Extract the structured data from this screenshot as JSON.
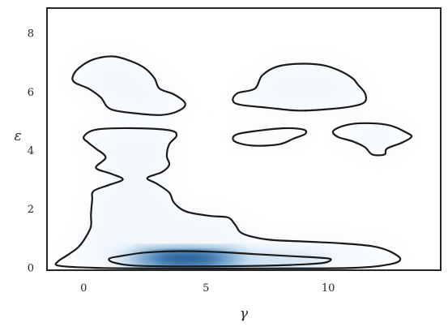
{
  "chart_data": {
    "type": "density",
    "title": "",
    "xlabel": "γ",
    "ylabel": "ε",
    "xlim": [
      -1.5,
      14.6
    ],
    "ylim": [
      -0.1,
      8.85
    ],
    "xticks": [
      0,
      5,
      10
    ],
    "yticks": [
      0,
      2,
      4,
      6,
      8
    ],
    "grid": false,
    "colormap": "Blues",
    "density_peak": {
      "x": 4.2,
      "y": 0.3
    },
    "contours": [
      {
        "name": "outer-main",
        "points": [
          [
            0.0,
            4.45
          ],
          [
            0.5,
            4.7
          ],
          [
            2.0,
            4.75
          ],
          [
            3.5,
            4.68
          ],
          [
            3.8,
            4.5
          ],
          [
            3.5,
            4.2
          ],
          [
            3.4,
            3.8
          ],
          [
            3.5,
            3.5
          ],
          [
            3.2,
            3.25
          ],
          [
            2.6,
            3.05
          ],
          [
            3.0,
            2.85
          ],
          [
            3.5,
            2.55
          ],
          [
            3.7,
            2.2
          ],
          [
            4.2,
            1.9
          ],
          [
            5.2,
            1.75
          ],
          [
            5.9,
            1.7
          ],
          [
            6.2,
            1.45
          ],
          [
            6.5,
            1.15
          ],
          [
            7.5,
            0.95
          ],
          [
            9.0,
            0.88
          ],
          [
            10.5,
            0.82
          ],
          [
            11.8,
            0.72
          ],
          [
            12.5,
            0.55
          ],
          [
            12.95,
            0.28
          ],
          [
            12.5,
            0.1
          ],
          [
            11.0,
            -0.02
          ],
          [
            7.5,
            -0.04
          ],
          [
            3.0,
            -0.04
          ],
          [
            0.5,
            -0.02
          ],
          [
            -1.0,
            0.05
          ],
          [
            -1.05,
            0.2
          ],
          [
            -0.6,
            0.45
          ],
          [
            -0.2,
            0.7
          ],
          [
            0.1,
            1.05
          ],
          [
            0.3,
            1.4
          ],
          [
            0.3,
            1.8
          ],
          [
            0.35,
            2.3
          ],
          [
            0.4,
            2.6
          ],
          [
            1.0,
            2.8
          ],
          [
            1.6,
            3.0
          ],
          [
            1.1,
            3.2
          ],
          [
            0.5,
            3.4
          ],
          [
            0.9,
            3.75
          ],
          [
            0.5,
            4.05
          ],
          [
            0.2,
            4.25
          ]
        ]
      },
      {
        "name": "inner-core",
        "points": [
          [
            1.05,
            0.3
          ],
          [
            1.5,
            0.38
          ],
          [
            2.5,
            0.5
          ],
          [
            4.0,
            0.55
          ],
          [
            5.5,
            0.52
          ],
          [
            7.0,
            0.45
          ],
          [
            8.5,
            0.38
          ],
          [
            9.6,
            0.33
          ],
          [
            10.1,
            0.28
          ],
          [
            9.8,
            0.15
          ],
          [
            8.5,
            0.08
          ],
          [
            6.5,
            0.04
          ],
          [
            4.0,
            0.03
          ],
          [
            2.0,
            0.06
          ],
          [
            1.2,
            0.17
          ]
        ]
      },
      {
        "name": "blob-upper-left",
        "points": [
          [
            -0.45,
            6.5
          ],
          [
            -0.2,
            6.8
          ],
          [
            0.4,
            7.1
          ],
          [
            1.2,
            7.2
          ],
          [
            1.9,
            7.05
          ],
          [
            2.5,
            6.8
          ],
          [
            2.9,
            6.45
          ],
          [
            3.1,
            6.1
          ],
          [
            3.7,
            5.9
          ],
          [
            4.15,
            5.6
          ],
          [
            3.9,
            5.35
          ],
          [
            3.2,
            5.2
          ],
          [
            2.2,
            5.25
          ],
          [
            1.1,
            5.4
          ],
          [
            0.7,
            5.8
          ],
          [
            0.2,
            6.1
          ],
          [
            -0.35,
            6.3
          ]
        ]
      },
      {
        "name": "blob-upper-middle",
        "points": [
          [
            6.1,
            5.7
          ],
          [
            6.3,
            5.95
          ],
          [
            7.0,
            6.1
          ],
          [
            7.3,
            6.55
          ],
          [
            7.9,
            6.85
          ],
          [
            8.8,
            6.95
          ],
          [
            9.8,
            6.9
          ],
          [
            10.5,
            6.7
          ],
          [
            11.0,
            6.45
          ],
          [
            11.2,
            6.25
          ],
          [
            11.5,
            5.95
          ],
          [
            11.5,
            5.65
          ],
          [
            11.0,
            5.5
          ],
          [
            10.0,
            5.4
          ],
          [
            8.8,
            5.35
          ],
          [
            7.5,
            5.45
          ],
          [
            6.4,
            5.55
          ]
        ]
      },
      {
        "name": "blob-middle",
        "points": [
          [
            6.1,
            4.4
          ],
          [
            6.3,
            4.55
          ],
          [
            7.0,
            4.65
          ],
          [
            8.2,
            4.75
          ],
          [
            9.0,
            4.7
          ],
          [
            9.05,
            4.55
          ],
          [
            8.6,
            4.4
          ],
          [
            8.0,
            4.2
          ],
          [
            7.0,
            4.15
          ],
          [
            6.3,
            4.25
          ]
        ]
      },
      {
        "name": "blob-right",
        "points": [
          [
            10.2,
            4.65
          ],
          [
            10.7,
            4.85
          ],
          [
            11.5,
            4.92
          ],
          [
            12.5,
            4.85
          ],
          [
            13.2,
            4.6
          ],
          [
            13.4,
            4.45
          ],
          [
            13.0,
            4.25
          ],
          [
            12.4,
            4.05
          ],
          [
            12.3,
            3.85
          ],
          [
            11.8,
            3.85
          ],
          [
            11.5,
            4.1
          ],
          [
            11.0,
            4.3
          ],
          [
            10.4,
            4.45
          ]
        ]
      }
    ]
  }
}
